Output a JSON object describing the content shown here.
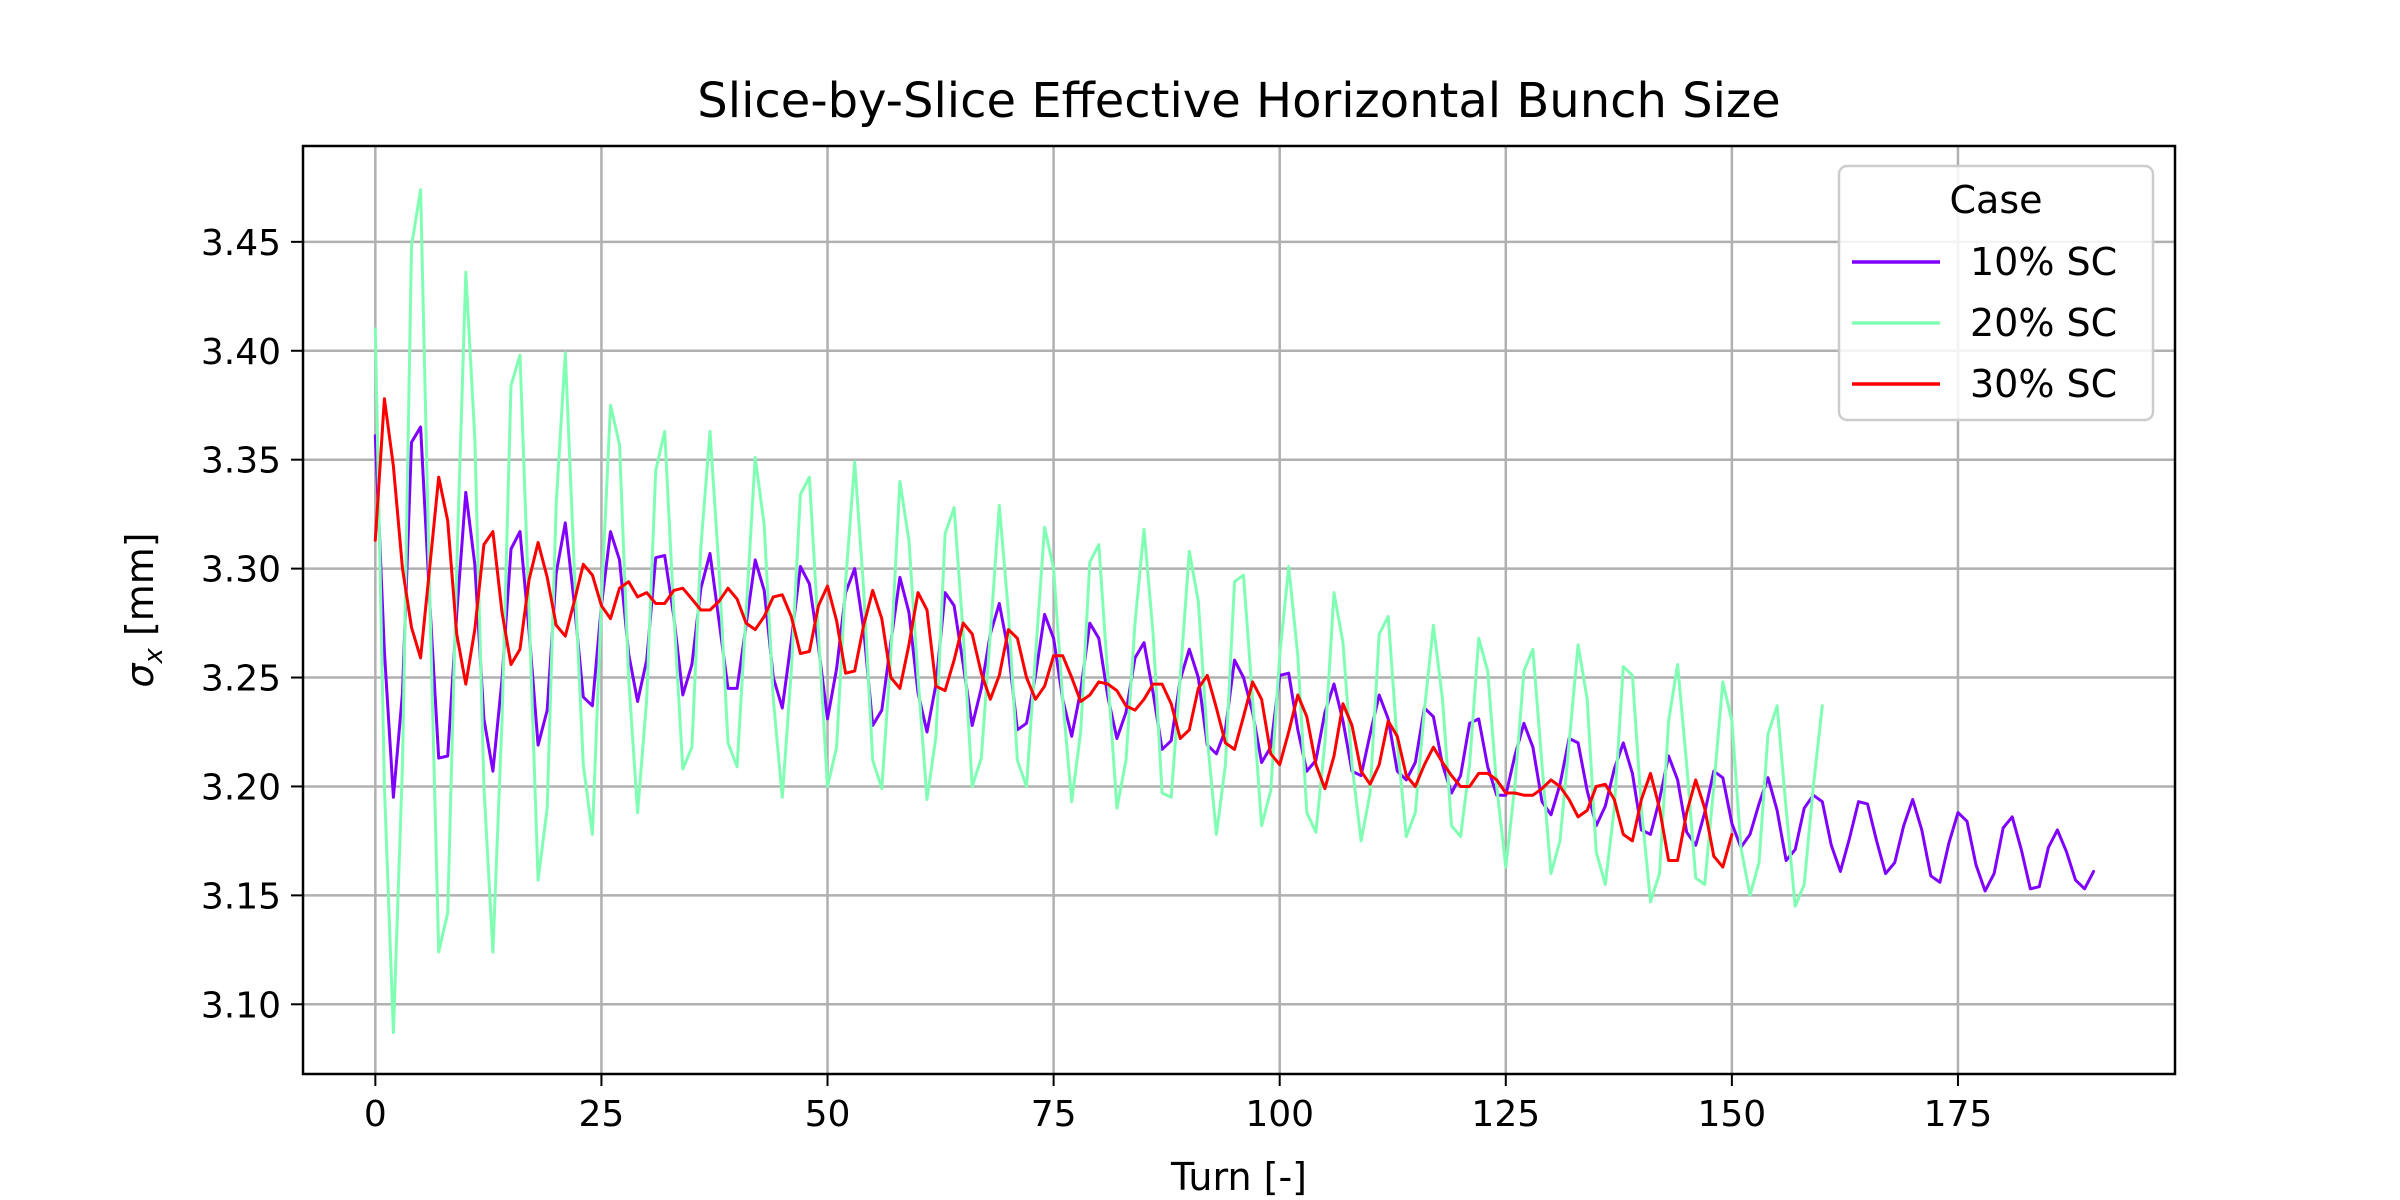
{
  "chart_data": {
    "type": "line",
    "title": "Slice-by-Slice Effective Horizontal Bunch Size",
    "xlabel": "Turn [-]",
    "ylabel": "σ",
    "ylabel_sub": "x",
    "ylabel_unit": " [mm]",
    "xlim": [
      -8,
      199
    ],
    "ylim": [
      3.068,
      3.494
    ],
    "xticks": [
      0,
      25,
      50,
      75,
      100,
      125,
      150,
      175
    ],
    "xtick_labels": [
      "0",
      "25",
      "50",
      "75",
      "100",
      "125",
      "150",
      "175"
    ],
    "yticks": [
      3.1,
      3.15,
      3.2,
      3.25,
      3.3,
      3.35,
      3.4,
      3.45
    ],
    "ytick_labels": [
      "3.10",
      "3.15",
      "3.20",
      "3.25",
      "3.30",
      "3.35",
      "3.40",
      "3.45"
    ],
    "grid": true,
    "legend": {
      "title": "Case",
      "position": "upper-right"
    },
    "series": [
      {
        "name": "10% SC",
        "color": "#8000ff",
        "x": [
          0,
          1,
          2,
          3,
          4,
          5,
          6,
          7,
          8,
          9,
          10,
          11,
          12,
          13,
          14,
          15,
          16,
          17,
          18,
          19,
          20,
          21,
          22,
          23,
          24,
          25,
          26,
          27,
          28,
          29,
          30,
          31,
          32,
          33,
          34,
          35,
          36,
          37,
          38,
          39,
          40,
          41,
          42,
          43,
          44,
          45,
          46,
          47,
          48,
          49,
          50,
          51,
          52,
          53,
          54,
          55,
          56,
          57,
          58,
          59,
          60,
          61,
          62,
          63,
          64,
          65,
          66,
          67,
          68,
          69,
          70,
          71,
          72,
          73,
          74,
          75,
          76,
          77,
          78,
          79,
          80,
          81,
          82,
          83,
          84,
          85,
          86,
          87,
          88,
          89,
          90,
          91,
          92,
          93,
          94,
          95,
          96,
          97,
          98,
          99,
          100,
          101,
          102,
          103,
          104,
          105,
          106,
          107,
          108,
          109,
          110,
          111,
          112,
          113,
          114,
          115,
          116,
          117,
          118,
          119,
          120,
          121,
          122,
          123,
          124,
          125,
          126,
          127,
          128,
          129,
          130,
          131,
          132,
          133,
          134,
          135,
          136,
          137,
          138,
          139,
          140,
          141,
          142,
          143,
          144,
          145,
          146,
          147,
          148,
          149,
          150,
          151,
          152,
          153,
          154,
          155,
          156,
          157,
          158,
          159,
          160,
          161,
          162,
          163,
          164,
          165,
          166,
          167,
          168,
          169,
          170,
          171,
          172,
          173,
          174,
          175,
          176,
          177,
          178,
          179,
          180,
          181,
          182,
          183,
          184,
          185,
          186,
          187,
          188,
          189,
          190
        ],
        "y": [
          3.361,
          3.262,
          3.195,
          3.243,
          3.358,
          3.365,
          3.286,
          3.213,
          3.214,
          3.279,
          3.335,
          3.302,
          3.231,
          3.207,
          3.249,
          3.309,
          3.317,
          3.271,
          3.219,
          3.235,
          3.298,
          3.321,
          3.284,
          3.241,
          3.237,
          3.283,
          3.317,
          3.304,
          3.261,
          3.239,
          3.258,
          3.305,
          3.306,
          3.278,
          3.242,
          3.256,
          3.291,
          3.307,
          3.276,
          3.245,
          3.245,
          3.274,
          3.304,
          3.29,
          3.25,
          3.236,
          3.267,
          3.301,
          3.293,
          3.264,
          3.231,
          3.254,
          3.289,
          3.3,
          3.272,
          3.228,
          3.235,
          3.266,
          3.296,
          3.28,
          3.243,
          3.225,
          3.247,
          3.289,
          3.283,
          3.256,
          3.228,
          3.245,
          3.27,
          3.284,
          3.262,
          3.226,
          3.229,
          3.251,
          3.279,
          3.268,
          3.24,
          3.223,
          3.244,
          3.275,
          3.268,
          3.241,
          3.222,
          3.234,
          3.259,
          3.266,
          3.243,
          3.217,
          3.221,
          3.249,
          3.263,
          3.25,
          3.219,
          3.215,
          3.226,
          3.258,
          3.25,
          3.234,
          3.211,
          3.218,
          3.251,
          3.252,
          3.226,
          3.207,
          3.212,
          3.234,
          3.247,
          3.23,
          3.207,
          3.205,
          3.224,
          3.242,
          3.231,
          3.207,
          3.203,
          3.211,
          3.236,
          3.232,
          3.21,
          3.197,
          3.205,
          3.229,
          3.231,
          3.209,
          3.196,
          3.196,
          3.214,
          3.229,
          3.218,
          3.193,
          3.187,
          3.201,
          3.222,
          3.22,
          3.198,
          3.182,
          3.191,
          3.208,
          3.22,
          3.206,
          3.18,
          3.178,
          3.194,
          3.214,
          3.203,
          3.179,
          3.173,
          3.188,
          3.207,
          3.204,
          3.183,
          3.172,
          3.178,
          3.192,
          3.204,
          3.189,
          3.166,
          3.171,
          3.19,
          3.196,
          3.193,
          3.173,
          3.161,
          3.176,
          3.193,
          3.192,
          3.175,
          3.16,
          3.165,
          3.182,
          3.194,
          3.18,
          3.159,
          3.156,
          3.174,
          3.188,
          3.184,
          3.164,
          3.152,
          3.16,
          3.181,
          3.186,
          3.171,
          3.153,
          3.154,
          3.172,
          3.18,
          3.17,
          3.157,
          3.153,
          3.161
        ]
      },
      {
        "name": "20% SC",
        "color": "#80ffb4",
        "x": [
          0,
          1,
          2,
          3,
          4,
          5,
          6,
          7,
          8,
          9,
          10,
          11,
          12,
          13,
          14,
          15,
          16,
          17,
          18,
          19,
          20,
          21,
          22,
          23,
          24,
          25,
          26,
          27,
          28,
          29,
          30,
          31,
          32,
          33,
          34,
          35,
          36,
          37,
          38,
          39,
          40,
          41,
          42,
          43,
          44,
          45,
          46,
          47,
          48,
          49,
          50,
          51,
          52,
          53,
          54,
          55,
          56,
          57,
          58,
          59,
          60,
          61,
          62,
          63,
          64,
          65,
          66,
          67,
          68,
          69,
          70,
          71,
          72,
          73,
          74,
          75,
          76,
          77,
          78,
          79,
          80,
          81,
          82,
          83,
          84,
          85,
          86,
          87,
          88,
          89,
          90,
          91,
          92,
          93,
          94,
          95,
          96,
          97,
          98,
          99,
          100,
          101,
          102,
          103,
          104,
          105,
          106,
          107,
          108,
          109,
          110,
          111,
          112,
          113,
          114,
          115,
          116,
          117,
          118,
          119,
          120,
          121,
          122,
          123,
          124,
          125,
          126,
          127,
          128,
          129,
          130,
          131,
          132,
          133,
          134,
          135,
          136,
          137,
          138,
          139,
          140,
          141,
          142,
          143,
          144,
          145,
          146,
          147,
          148,
          149,
          150,
          151,
          152,
          153,
          154,
          155,
          156,
          157,
          158,
          159,
          160
        ],
        "y": [
          3.41,
          3.2,
          3.087,
          3.21,
          3.448,
          3.474,
          3.29,
          3.124,
          3.142,
          3.3,
          3.436,
          3.36,
          3.2,
          3.124,
          3.23,
          3.384,
          3.398,
          3.28,
          3.157,
          3.19,
          3.33,
          3.399,
          3.3,
          3.21,
          3.178,
          3.285,
          3.375,
          3.357,
          3.25,
          3.188,
          3.24,
          3.345,
          3.363,
          3.28,
          3.208,
          3.218,
          3.31,
          3.363,
          3.3,
          3.22,
          3.209,
          3.28,
          3.351,
          3.32,
          3.24,
          3.195,
          3.253,
          3.334,
          3.342,
          3.27,
          3.2,
          3.218,
          3.294,
          3.349,
          3.29,
          3.212,
          3.199,
          3.26,
          3.34,
          3.313,
          3.25,
          3.194,
          3.223,
          3.316,
          3.328,
          3.27,
          3.2,
          3.213,
          3.27,
          3.329,
          3.28,
          3.212,
          3.2,
          3.26,
          3.319,
          3.3,
          3.24,
          3.193,
          3.225,
          3.303,
          3.311,
          3.25,
          3.19,
          3.212,
          3.275,
          3.318,
          3.27,
          3.197,
          3.195,
          3.25,
          3.308,
          3.285,
          3.222,
          3.178,
          3.21,
          3.294,
          3.297,
          3.24,
          3.182,
          3.198,
          3.26,
          3.301,
          3.26,
          3.188,
          3.179,
          3.22,
          3.289,
          3.266,
          3.21,
          3.175,
          3.197,
          3.27,
          3.278,
          3.22,
          3.177,
          3.188,
          3.235,
          3.274,
          3.24,
          3.182,
          3.177,
          3.21,
          3.268,
          3.253,
          3.2,
          3.163,
          3.2,
          3.253,
          3.263,
          3.21,
          3.16,
          3.175,
          3.22,
          3.265,
          3.24,
          3.17,
          3.155,
          3.19,
          3.255,
          3.251,
          3.19,
          3.147,
          3.16,
          3.23,
          3.256,
          3.21,
          3.158,
          3.155,
          3.2,
          3.248,
          3.23,
          3.172,
          3.15,
          3.165,
          3.224,
          3.237,
          3.19,
          3.145,
          3.155,
          3.2,
          3.237
        ]
      },
      {
        "name": "30% SC",
        "color": "#ff0000",
        "x": [
          0,
          1,
          2,
          3,
          4,
          5,
          6,
          7,
          8,
          9,
          10,
          11,
          12,
          13,
          14,
          15,
          16,
          17,
          18,
          19,
          20,
          21,
          22,
          23,
          24,
          25,
          26,
          27,
          28,
          29,
          30,
          31,
          32,
          33,
          34,
          35,
          36,
          37,
          38,
          39,
          40,
          41,
          42,
          43,
          44,
          45,
          46,
          47,
          48,
          49,
          50,
          51,
          52,
          53,
          54,
          55,
          56,
          57,
          58,
          59,
          60,
          61,
          62,
          63,
          64,
          65,
          66,
          67,
          68,
          69,
          70,
          71,
          72,
          73,
          74,
          75,
          76,
          77,
          78,
          79,
          80,
          81,
          82,
          83,
          84,
          85,
          86,
          87,
          88,
          89,
          90,
          91,
          92,
          93,
          94,
          95,
          96,
          97,
          98,
          99,
          100,
          101,
          102,
          103,
          104,
          105,
          106,
          107,
          108,
          109,
          110,
          111,
          112,
          113,
          114,
          115,
          116,
          117,
          118,
          119,
          120,
          121,
          122,
          123,
          124,
          125,
          126,
          127,
          128,
          129,
          130,
          131,
          132,
          133,
          134,
          135,
          136,
          137,
          138,
          139,
          140,
          141,
          142,
          143,
          144,
          145,
          146,
          147,
          148,
          149,
          150
        ],
        "y": [
          3.313,
          3.378,
          3.347,
          3.3,
          3.273,
          3.259,
          3.3,
          3.342,
          3.322,
          3.27,
          3.247,
          3.272,
          3.311,
          3.317,
          3.28,
          3.256,
          3.263,
          3.295,
          3.312,
          3.296,
          3.274,
          3.269,
          3.285,
          3.302,
          3.297,
          3.283,
          3.277,
          3.291,
          3.294,
          3.287,
          3.289,
          3.284,
          3.284,
          3.29,
          3.291,
          3.286,
          3.281,
          3.281,
          3.285,
          3.291,
          3.286,
          3.275,
          3.272,
          3.278,
          3.287,
          3.288,
          3.278,
          3.261,
          3.262,
          3.283,
          3.292,
          3.276,
          3.252,
          3.253,
          3.274,
          3.29,
          3.277,
          3.25,
          3.245,
          3.265,
          3.289,
          3.281,
          3.246,
          3.244,
          3.258,
          3.275,
          3.27,
          3.252,
          3.24,
          3.251,
          3.272,
          3.268,
          3.25,
          3.24,
          3.246,
          3.26,
          3.26,
          3.25,
          3.239,
          3.242,
          3.248,
          3.247,
          3.244,
          3.237,
          3.235,
          3.24,
          3.247,
          3.247,
          3.238,
          3.222,
          3.226,
          3.245,
          3.251,
          3.236,
          3.22,
          3.217,
          3.232,
          3.248,
          3.24,
          3.215,
          3.21,
          3.225,
          3.242,
          3.232,
          3.21,
          3.199,
          3.214,
          3.238,
          3.228,
          3.207,
          3.201,
          3.21,
          3.23,
          3.223,
          3.205,
          3.2,
          3.21,
          3.218,
          3.211,
          3.205,
          3.2,
          3.2,
          3.206,
          3.206,
          3.203,
          3.197,
          3.197,
          3.196,
          3.196,
          3.199,
          3.203,
          3.2,
          3.194,
          3.186,
          3.189,
          3.2,
          3.201,
          3.194,
          3.178,
          3.175,
          3.194,
          3.206,
          3.19,
          3.166,
          3.166,
          3.188,
          3.203,
          3.19,
          3.168,
          3.163,
          3.178
        ]
      }
    ]
  }
}
